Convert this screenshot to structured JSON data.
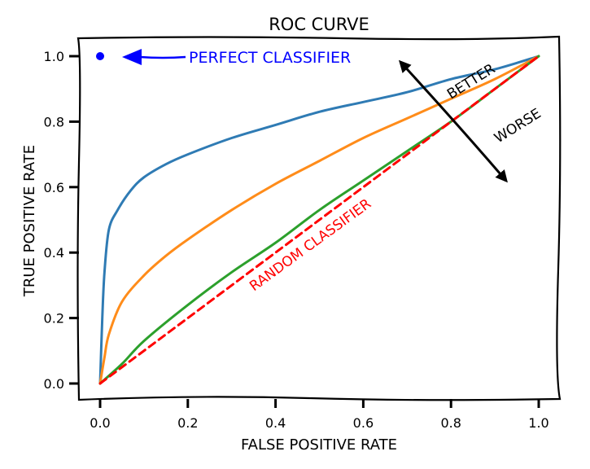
{
  "chart_data": {
    "type": "line",
    "title": "ROC CURVE",
    "xlabel": "FALSE POSITIVE RATE",
    "ylabel": "TRUE POSITIVE RATE",
    "xlim": [
      0.0,
      1.0
    ],
    "ylim": [
      0.0,
      1.0
    ],
    "xticks": [
      "0.0",
      "0.2",
      "0.4",
      "0.6",
      "0.8",
      "1.0"
    ],
    "yticks": [
      "0.0",
      "0.2",
      "0.4",
      "0.6",
      "0.8",
      "1.0"
    ],
    "grid": false,
    "series": [
      {
        "color": "#2f7bb4",
        "x": [
          0.0,
          0.005,
          0.01,
          0.02,
          0.04,
          0.07,
          0.1,
          0.15,
          0.2,
          0.3,
          0.4,
          0.5,
          0.6,
          0.7,
          0.8,
          0.9,
          1.0
        ],
        "y": [
          0.0,
          0.2,
          0.34,
          0.47,
          0.53,
          0.59,
          0.63,
          0.67,
          0.7,
          0.75,
          0.79,
          0.83,
          0.86,
          0.89,
          0.93,
          0.96,
          1.0
        ]
      },
      {
        "color": "#ff8c1a",
        "x": [
          0.0,
          0.01,
          0.02,
          0.05,
          0.1,
          0.15,
          0.2,
          0.3,
          0.4,
          0.5,
          0.6,
          0.7,
          0.8,
          0.9,
          1.0
        ],
        "y": [
          0.0,
          0.08,
          0.15,
          0.25,
          0.33,
          0.39,
          0.44,
          0.53,
          0.61,
          0.68,
          0.75,
          0.81,
          0.87,
          0.93,
          1.0
        ]
      },
      {
        "color": "#2ca02c",
        "x": [
          0.0,
          0.05,
          0.1,
          0.2,
          0.3,
          0.4,
          0.5,
          0.6,
          0.7,
          0.8,
          0.9,
          1.0
        ],
        "y": [
          0.0,
          0.06,
          0.13,
          0.24,
          0.34,
          0.43,
          0.53,
          0.62,
          0.71,
          0.8,
          0.9,
          1.0
        ]
      },
      {
        "color": "#ff0000",
        "style": "dashed",
        "x": [
          0.0,
          1.0
        ],
        "y": [
          0.0,
          1.0
        ]
      }
    ],
    "annotations": {
      "perfect": {
        "text": "PERFECT CLASSIFIER",
        "x": 0.0,
        "y": 1.0,
        "color": "#0000ff"
      },
      "random": {
        "text": "RANDOM CLASSIFIER",
        "color": "#ff0000"
      },
      "better": {
        "text": "BETTER",
        "color": "#000000"
      },
      "worse": {
        "text": "WORSE",
        "color": "#000000"
      }
    }
  }
}
